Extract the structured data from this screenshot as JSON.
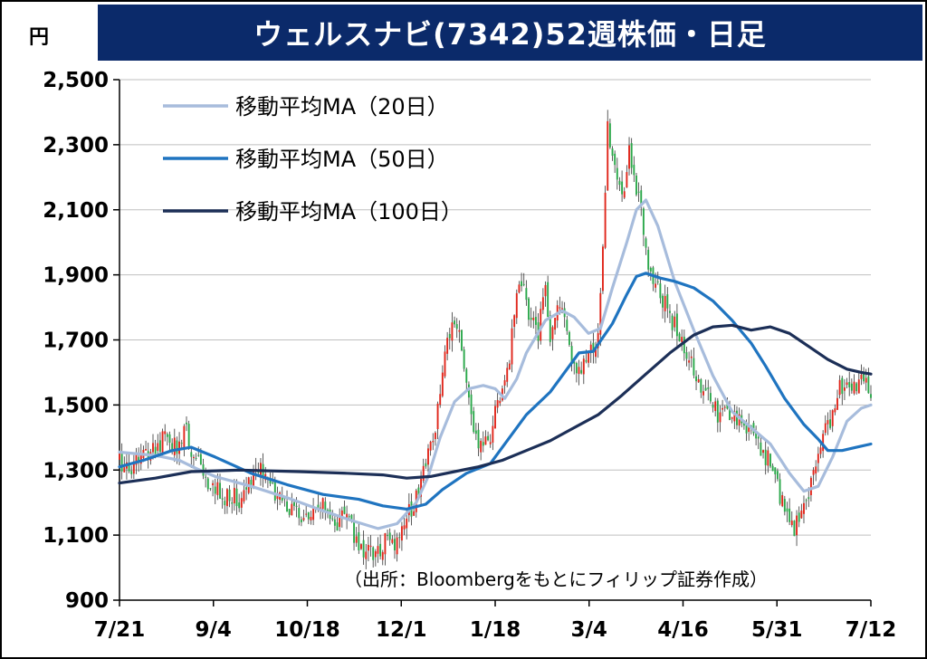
{
  "title": "ウェルスナビ(7342)52週株価・日足",
  "unit_label": "円",
  "source_note": "（出所：Bloombergをもとにフィリップ証券作成）",
  "colors": {
    "title_bg": "#0b2a6a",
    "up": "#e0261b",
    "down": "#2aa84a",
    "ma20": "#a7bcdc",
    "ma50": "#1f74c0",
    "ma100": "#1c2f57",
    "grid": "#bfbfbf"
  },
  "chart_data": {
    "type": "candlestick",
    "ylim": [
      900,
      2500
    ],
    "y_ticks": [
      "2,500",
      "2,300",
      "2,100",
      "1,900",
      "1,700",
      "1,500",
      "1,300",
      "1,100",
      "900"
    ],
    "x_tick_labels": [
      "7/21",
      "9/4",
      "10/18",
      "12/1",
      "1/18",
      "3/4",
      "4/16",
      "5/31",
      "7/12"
    ],
    "grid": true,
    "legend_position": "top-left",
    "legend": [
      {
        "name": "移動平均MA（20日）",
        "key": "ma20"
      },
      {
        "name": "移動平均MA（50日）",
        "key": "ma50"
      },
      {
        "name": "移動平均MA（100日）",
        "key": "ma100"
      }
    ],
    "price_path": [
      [
        0,
        1320
      ],
      [
        5,
        1310
      ],
      [
        10,
        1350
      ],
      [
        15,
        1380
      ],
      [
        20,
        1400
      ],
      [
        25,
        1370
      ],
      [
        28,
        1430
      ],
      [
        30,
        1360
      ],
      [
        35,
        1290
      ],
      [
        40,
        1230
      ],
      [
        45,
        1220
      ],
      [
        50,
        1210
      ],
      [
        55,
        1270
      ],
      [
        60,
        1300
      ],
      [
        65,
        1240
      ],
      [
        70,
        1200
      ],
      [
        75,
        1150
      ],
      [
        80,
        1160
      ],
      [
        85,
        1200
      ],
      [
        90,
        1140
      ],
      [
        95,
        1150
      ],
      [
        100,
        1070
      ],
      [
        105,
        1040
      ],
      [
        110,
        1070
      ],
      [
        115,
        1080
      ],
      [
        120,
        1150
      ],
      [
        125,
        1240
      ],
      [
        130,
        1380
      ],
      [
        133,
        1470
      ],
      [
        136,
        1660
      ],
      [
        139,
        1720
      ],
      [
        142,
        1700
      ],
      [
        145,
        1600
      ],
      [
        148,
        1450
      ],
      [
        150,
        1380
      ],
      [
        155,
        1420
      ],
      [
        158,
        1510
      ],
      [
        160,
        1530
      ],
      [
        163,
        1660
      ],
      [
        166,
        1870
      ],
      [
        168,
        1890
      ],
      [
        170,
        1820
      ],
      [
        172,
        1760
      ],
      [
        175,
        1720
      ],
      [
        178,
        1880
      ],
      [
        180,
        1700
      ],
      [
        183,
        1780
      ],
      [
        186,
        1760
      ],
      [
        189,
        1640
      ],
      [
        192,
        1600
      ],
      [
        195,
        1640
      ],
      [
        197,
        1680
      ],
      [
        200,
        1720
      ],
      [
        202,
        2000
      ],
      [
        204,
        2350
      ],
      [
        207,
        2250
      ],
      [
        210,
        2150
      ],
      [
        213,
        2270
      ],
      [
        215,
        2200
      ],
      [
        218,
        2080
      ],
      [
        222,
        1900
      ],
      [
        226,
        1830
      ],
      [
        229,
        1800
      ],
      [
        232,
        1740
      ],
      [
        235,
        1700
      ],
      [
        238,
        1660
      ],
      [
        242,
        1570
      ],
      [
        246,
        1520
      ],
      [
        250,
        1470
      ],
      [
        254,
        1460
      ],
      [
        258,
        1450
      ],
      [
        261,
        1460
      ],
      [
        263,
        1420
      ],
      [
        266,
        1430
      ],
      [
        269,
        1350
      ],
      [
        272,
        1320
      ],
      [
        275,
        1250
      ],
      [
        278,
        1160
      ],
      [
        282,
        1130
      ],
      [
        285,
        1170
      ],
      [
        288,
        1240
      ],
      [
        291,
        1330
      ],
      [
        294,
        1400
      ],
      [
        297,
        1460
      ],
      [
        300,
        1550
      ],
      [
        303,
        1560
      ],
      [
        306,
        1530
      ],
      [
        309,
        1570
      ],
      [
        312,
        1560
      ],
      [
        314,
        1530
      ]
    ],
    "series": [
      {
        "name": "移動平均MA（20日）",
        "key": "ma20",
        "points": [
          [
            0,
            1355
          ],
          [
            15,
            1345
          ],
          [
            25,
            1330
          ],
          [
            32,
            1305
          ],
          [
            40,
            1280
          ],
          [
            55,
            1250
          ],
          [
            70,
            1215
          ],
          [
            85,
            1175
          ],
          [
            97,
            1145
          ],
          [
            108,
            1120
          ],
          [
            116,
            1135
          ],
          [
            124,
            1200
          ],
          [
            129,
            1280
          ],
          [
            134,
            1400
          ],
          [
            140,
            1510
          ],
          [
            146,
            1550
          ],
          [
            152,
            1560
          ],
          [
            157,
            1550
          ],
          [
            161,
            1520
          ],
          [
            166,
            1580
          ],
          [
            170,
            1660
          ],
          [
            178,
            1760
          ],
          [
            185,
            1790
          ],
          [
            190,
            1770
          ],
          [
            196,
            1720
          ],
          [
            201,
            1735
          ],
          [
            206,
            1860
          ],
          [
            212,
            2000
          ],
          [
            216,
            2100
          ],
          [
            220,
            2130
          ],
          [
            225,
            2050
          ],
          [
            232,
            1880
          ],
          [
            240,
            1730
          ],
          [
            248,
            1590
          ],
          [
            256,
            1480
          ],
          [
            264,
            1430
          ],
          [
            272,
            1380
          ],
          [
            280,
            1290
          ],
          [
            286,
            1235
          ],
          [
            292,
            1250
          ],
          [
            298,
            1340
          ],
          [
            304,
            1450
          ],
          [
            310,
            1490
          ],
          [
            314,
            1500
          ]
        ]
      },
      {
        "name": "移動平均MA（50日）",
        "key": "ma50",
        "points": [
          [
            0,
            1310
          ],
          [
            10,
            1330
          ],
          [
            22,
            1360
          ],
          [
            30,
            1370
          ],
          [
            40,
            1340
          ],
          [
            55,
            1290
          ],
          [
            70,
            1255
          ],
          [
            85,
            1225
          ],
          [
            100,
            1210
          ],
          [
            110,
            1190
          ],
          [
            120,
            1180
          ],
          [
            128,
            1195
          ],
          [
            135,
            1240
          ],
          [
            145,
            1290
          ],
          [
            155,
            1320
          ],
          [
            162,
            1390
          ],
          [
            170,
            1470
          ],
          [
            180,
            1540
          ],
          [
            187,
            1610
          ],
          [
            192,
            1660
          ],
          [
            198,
            1665
          ],
          [
            206,
            1750
          ],
          [
            212,
            1840
          ],
          [
            216,
            1895
          ],
          [
            220,
            1905
          ],
          [
            226,
            1890
          ],
          [
            232,
            1880
          ],
          [
            240,
            1860
          ],
          [
            248,
            1820
          ],
          [
            256,
            1760
          ],
          [
            264,
            1690
          ],
          [
            270,
            1620
          ],
          [
            278,
            1520
          ],
          [
            286,
            1440
          ],
          [
            292,
            1395
          ],
          [
            296,
            1360
          ],
          [
            302,
            1360
          ],
          [
            308,
            1370
          ],
          [
            314,
            1380
          ]
        ]
      },
      {
        "name": "移動平均MA（100日）",
        "key": "ma100",
        "points": [
          [
            0,
            1260
          ],
          [
            15,
            1275
          ],
          [
            30,
            1295
          ],
          [
            50,
            1300
          ],
          [
            75,
            1295
          ],
          [
            95,
            1290
          ],
          [
            110,
            1285
          ],
          [
            120,
            1275
          ],
          [
            130,
            1280
          ],
          [
            140,
            1295
          ],
          [
            150,
            1310
          ],
          [
            160,
            1330
          ],
          [
            170,
            1360
          ],
          [
            180,
            1390
          ],
          [
            190,
            1430
          ],
          [
            200,
            1470
          ],
          [
            210,
            1530
          ],
          [
            220,
            1595
          ],
          [
            230,
            1660
          ],
          [
            240,
            1715
          ],
          [
            248,
            1740
          ],
          [
            256,
            1745
          ],
          [
            264,
            1730
          ],
          [
            272,
            1740
          ],
          [
            280,
            1720
          ],
          [
            288,
            1680
          ],
          [
            296,
            1640
          ],
          [
            304,
            1610
          ],
          [
            310,
            1600
          ],
          [
            314,
            1595
          ]
        ]
      }
    ]
  }
}
